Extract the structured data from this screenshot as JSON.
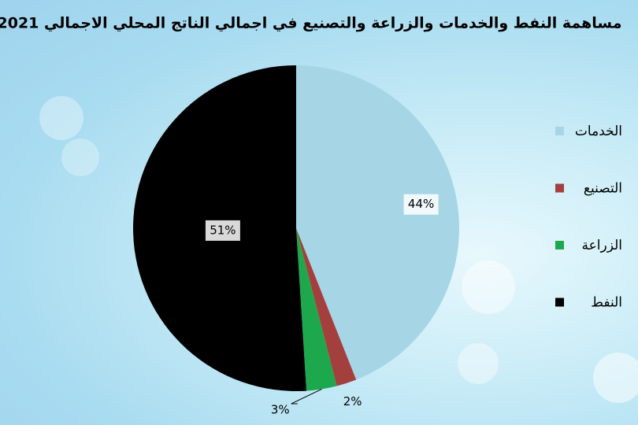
{
  "chart_data": {
    "type": "pie",
    "title": "مساهمة النفط والخدمات والزراعة والتصنيع في اجمالي الناتج المحلي الاجمالي 2021",
    "categories": [
      "الخدمات",
      "التصنيع",
      "الزراعة",
      "النفط"
    ],
    "values": [
      44,
      2,
      3,
      51
    ],
    "value_labels": [
      "44%",
      "2%",
      "3%",
      "51%"
    ],
    "colors": [
      "#a6d6e6",
      "#a3403d",
      "#1ea84e",
      "#000000"
    ],
    "legend": "right"
  }
}
